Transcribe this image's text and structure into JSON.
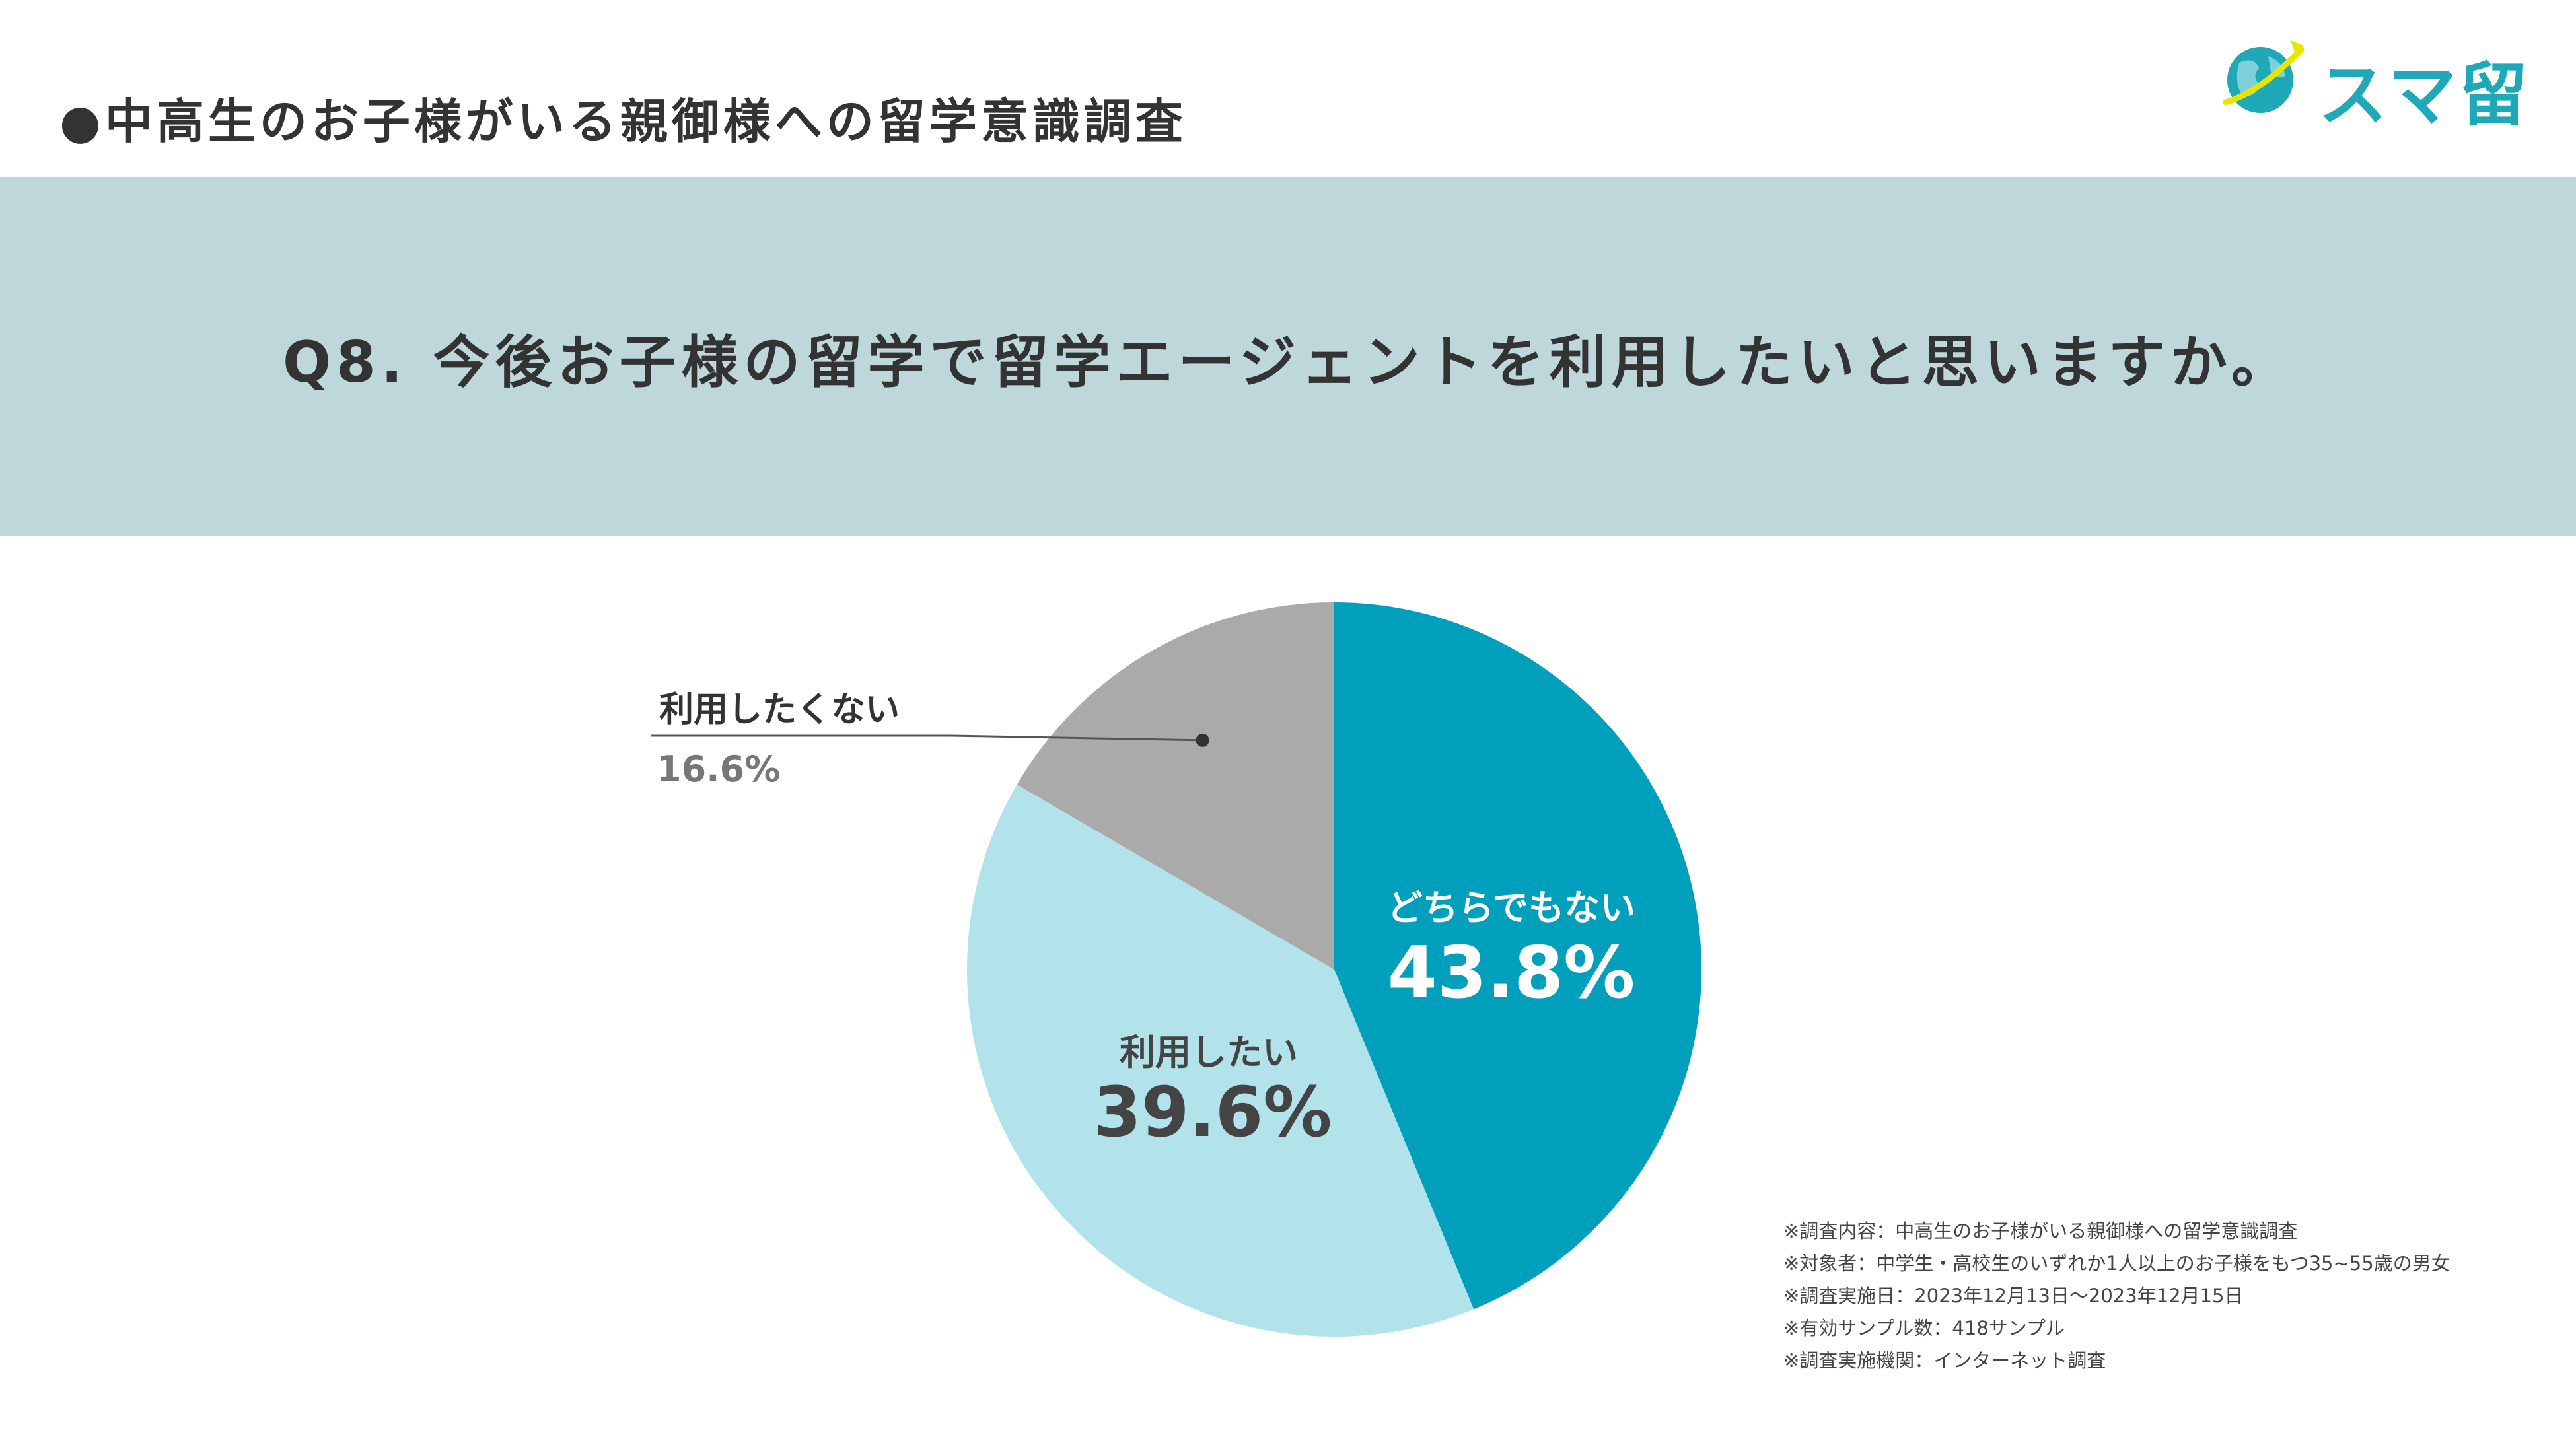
{
  "header": {
    "survey_title": "●中高生のお子様がいる親御様への留学意識調査",
    "logo_text": "スマ留"
  },
  "question": "Q8. 今後お子様の留学で留学エージェントを利用したいと思いますか。",
  "colors": {
    "band": "#bdd7db",
    "dochira": "#00a0bd",
    "riyou_shitai": "#b2e2ea",
    "riyou_shitakunai": "#aaaaaa",
    "logo": "#1fa8b8"
  },
  "chart_data": {
    "type": "pie",
    "start": "12 o'clock, clockwise",
    "slices": [
      {
        "label": "どちらでもない",
        "value": 43.8,
        "display": "43.8%",
        "color": "#00a0bd",
        "text_color": "#ffffff"
      },
      {
        "label": "利用したい",
        "value": 39.6,
        "display": "39.6%",
        "color": "#b2e2ea",
        "text_color": "#444444"
      },
      {
        "label": "利用したくない",
        "value": 16.6,
        "display": "16.6%",
        "color": "#aaaaaa",
        "text_color": "#333333"
      }
    ]
  },
  "notes": [
    "※調査内容：中高生のお子様がいる親御様への留学意識調査",
    "※対象者：中学生・高校生のいずれか1人以上のお子様をもつ35~55歳の男女",
    "※調査実施日：2023年12月13日〜2023年12月15日",
    "※有効サンプル数：418サンプル",
    "※調査実施機関：インターネット調査"
  ]
}
